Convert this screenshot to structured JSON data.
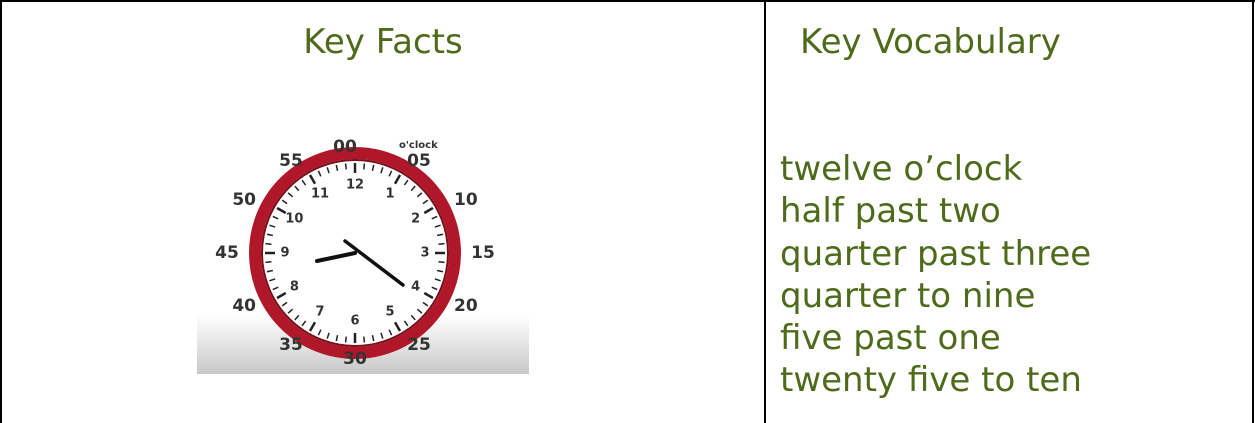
{
  "header": {
    "left": "Key Facts",
    "right": "Key Vocabulary"
  },
  "clock": {
    "oclock": "o'clock",
    "minute_labels": [
      "00",
      "05",
      "10",
      "15",
      "20",
      "25",
      "30",
      "35",
      "40",
      "45",
      "50",
      "55"
    ],
    "hour_numbers": [
      "12",
      "1",
      "2",
      "3",
      "4",
      "5",
      "6",
      "7",
      "8",
      "9",
      "10",
      "11"
    ]
  },
  "vocabulary": [
    "twelve o’clock",
    "half past two",
    "quarter past three",
    "quarter to nine",
    "five past one",
    "twenty five to ten"
  ]
}
